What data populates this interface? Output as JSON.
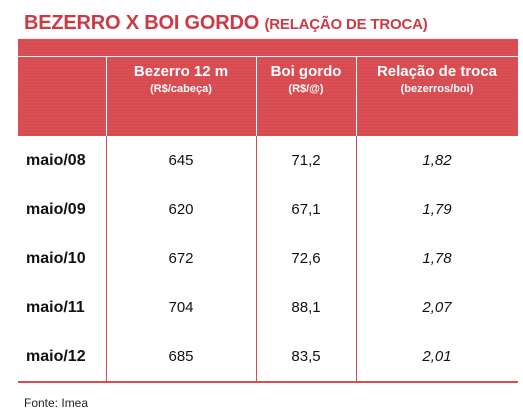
{
  "title": {
    "main": "BEZERRO X BOI GORDO",
    "sub": "(RELAÇÃO DE TROCA)"
  },
  "columns": [
    {
      "label": "Bezerro 12 m",
      "unit": "(R$/cabeça)"
    },
    {
      "label": "Boi gordo",
      "unit": "(R$/@)"
    },
    {
      "label": "Relação de troca",
      "unit": "(bezerros/boi)"
    }
  ],
  "rows": [
    {
      "period": "maio/08",
      "bezerro": "645",
      "boi": "71,2",
      "relacao": "1,82"
    },
    {
      "period": "maio/09",
      "bezerro": "620",
      "boi": "67,1",
      "relacao": "1,79"
    },
    {
      "period": "maio/10",
      "bezerro": "672",
      "boi": "72,6",
      "relacao": "1,78"
    },
    {
      "period": "maio/11",
      "bezerro": "704",
      "boi": "88,1",
      "relacao": "2,07"
    },
    {
      "period": "maio/12",
      "bezerro": "685",
      "boi": "83,5",
      "relacao": "2,01"
    }
  ],
  "source": "Fonte: Imea",
  "colors": {
    "accent": "#d74b51",
    "title": "#cc3b44"
  }
}
